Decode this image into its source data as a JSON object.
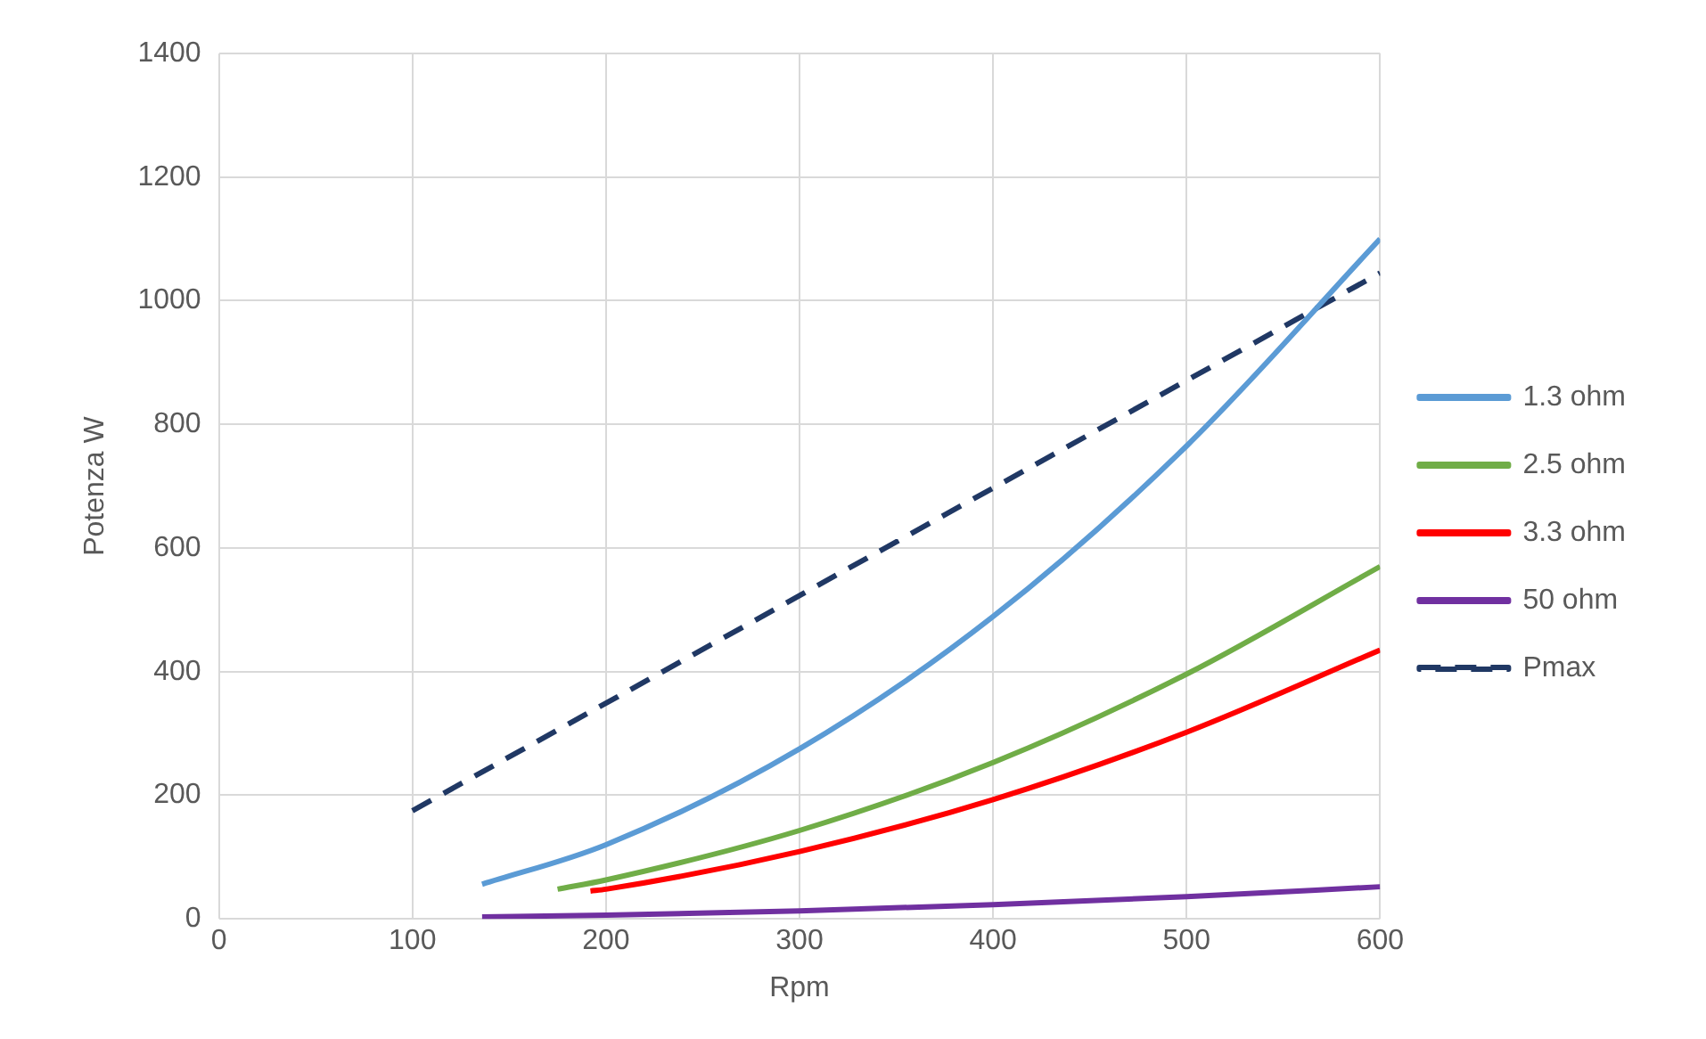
{
  "chart_data": {
    "type": "line",
    "xlabel": "Rpm",
    "ylabel": "Potenza W",
    "xlim": [
      0,
      600
    ],
    "xticks": [
      0,
      100,
      200,
      300,
      400,
      500,
      600
    ],
    "ylim": [
      0,
      1400
    ],
    "yticks": [
      0,
      200,
      400,
      600,
      800,
      1000,
      1200,
      1400
    ],
    "grid": true,
    "legend": "right",
    "marker": "none",
    "series": [
      {
        "name": "1.3 ohm",
        "color": "#5b9bd5",
        "x": [
          136,
          200,
          300,
          400,
          500,
          600
        ],
        "values": [
          56,
          120,
          275,
          489,
          765,
          1100
        ]
      },
      {
        "name": "2.5 ohm",
        "color": "#70ad47",
        "x": [
          175,
          200,
          300,
          400,
          500,
          600
        ],
        "values": [
          48,
          63,
          143,
          253,
          396,
          570
        ]
      },
      {
        "name": "3.3 ohm",
        "color": "#ff0000",
        "x": [
          192,
          200,
          300,
          400,
          500,
          600
        ],
        "values": [
          45,
          48,
          109,
          193,
          302,
          435
        ]
      },
      {
        "name": "50 ohm",
        "color": "#7030a0",
        "x": [
          136,
          200,
          300,
          400,
          500,
          600
        ],
        "values": [
          3,
          6,
          13,
          23,
          36,
          52
        ]
      },
      {
        "name": "Pmax",
        "color": "#203864",
        "x": [
          100,
          600
        ],
        "values": [
          175,
          1045
        ],
        "line_style": "dashed"
      }
    ]
  }
}
